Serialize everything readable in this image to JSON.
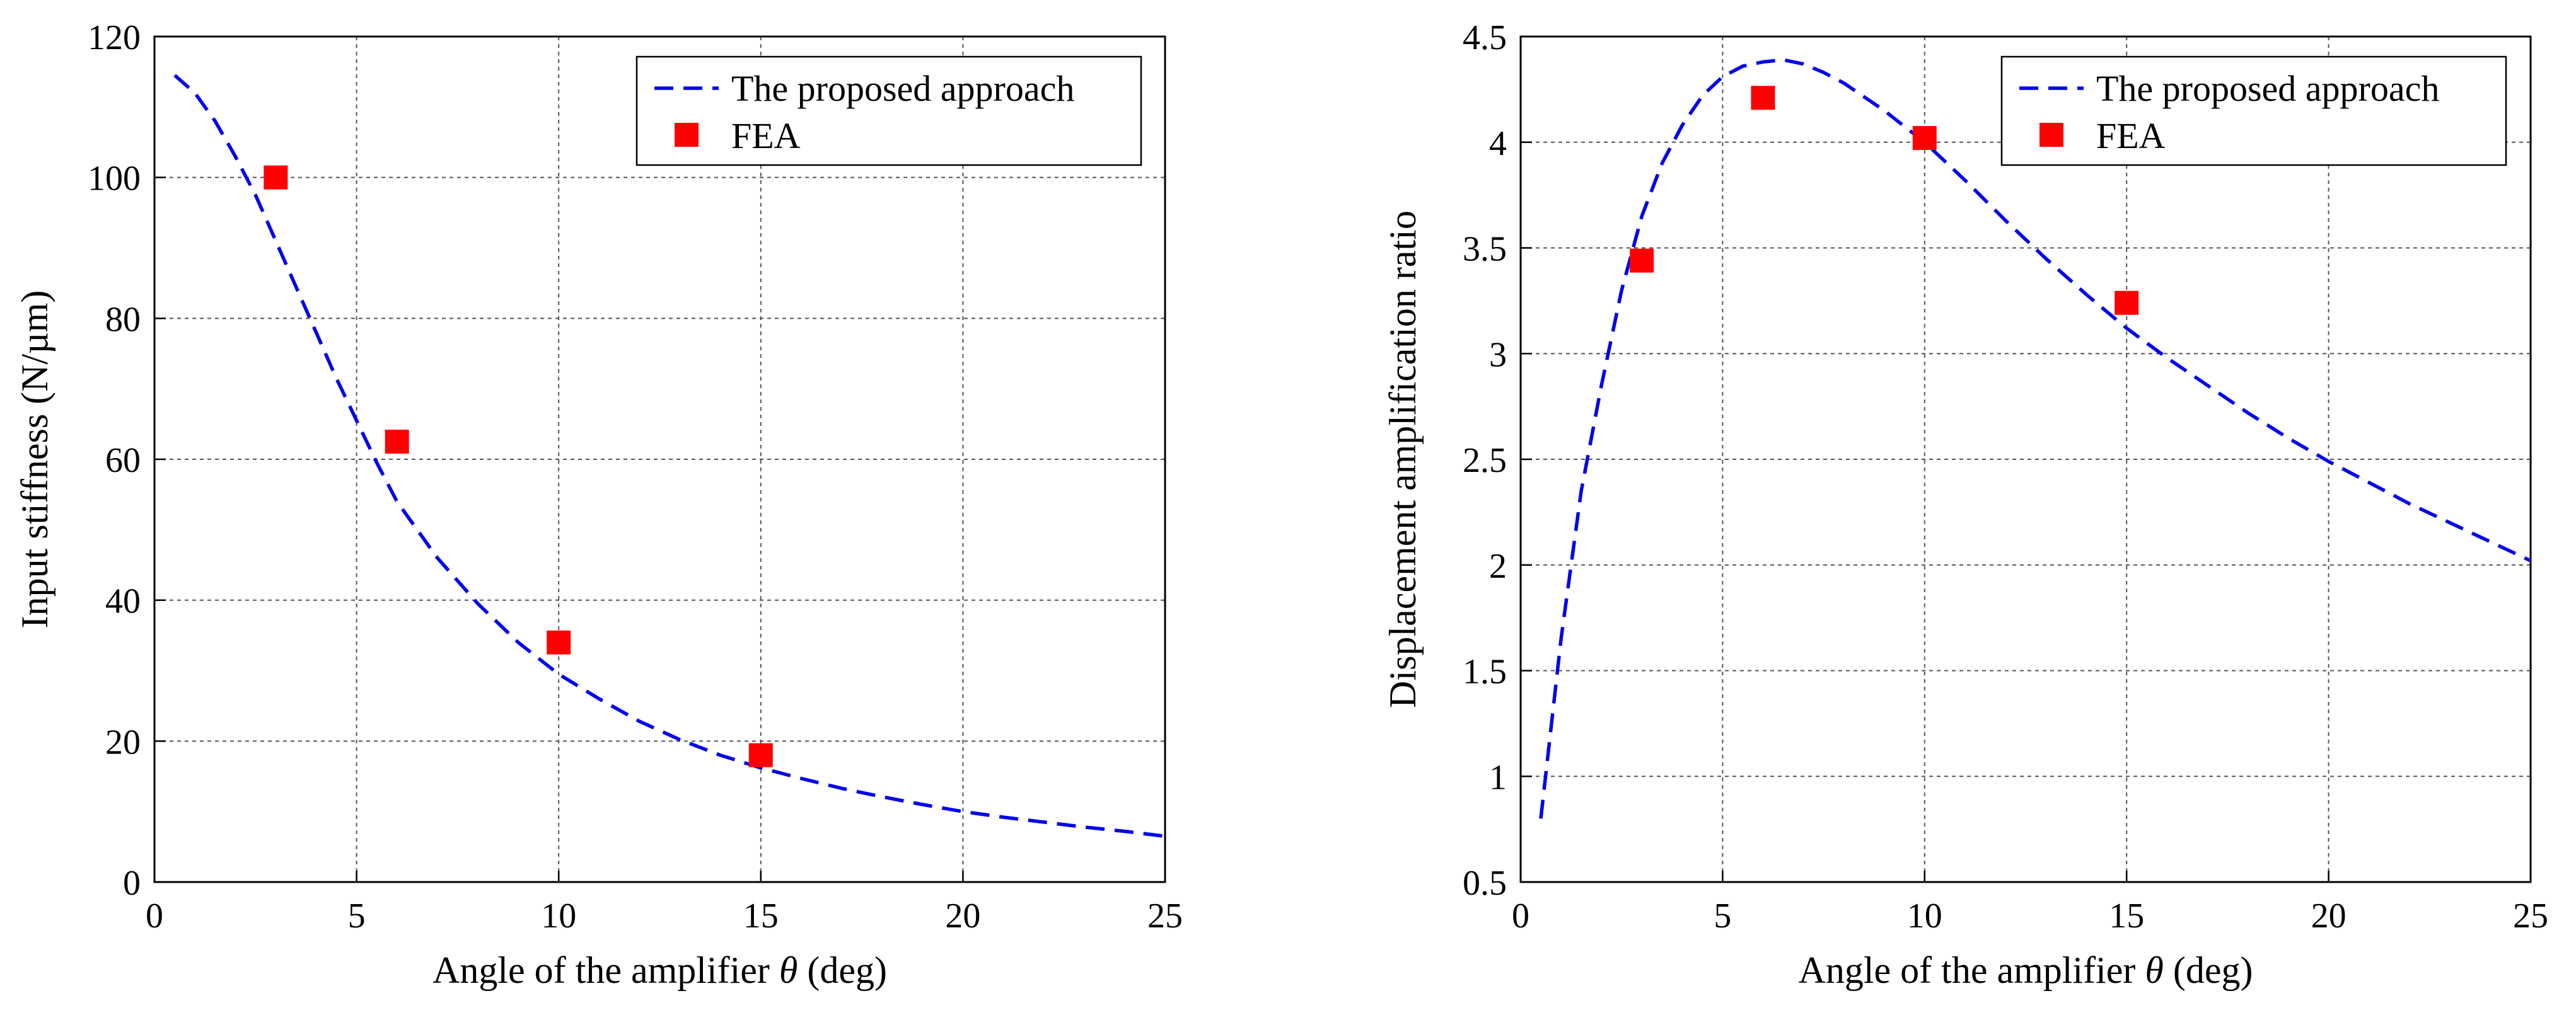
{
  "colors": {
    "curve": "#0000ee",
    "marker": "#ff0000",
    "grid": "#555555",
    "axis": "#000000"
  },
  "chart_data": [
    {
      "type": "line",
      "ylabel": "Input stiffness (N/µm)",
      "xlabel_prefix": "Angle of the amplifier ",
      "xlabel_symbol": "θ",
      "xlabel_suffix": " (deg)",
      "xlim": [
        0,
        25
      ],
      "ylim": [
        0,
        120
      ],
      "xticks": [
        "0",
        "5",
        "10",
        "15",
        "20",
        "25"
      ],
      "yticks": [
        "0",
        "20",
        "40",
        "60",
        "80",
        "100",
        "120"
      ],
      "grid": true,
      "legend_position": "top-right",
      "legend": [
        "The proposed approach",
        "FEA"
      ],
      "series": [
        {
          "name": "The proposed approach",
          "kind": "line",
          "x": [
            0.5,
            1,
            1.5,
            2,
            2.5,
            3,
            3.5,
            4,
            4.5,
            5,
            5.5,
            6,
            7,
            8,
            9,
            10,
            11,
            12,
            13,
            14,
            15,
            16,
            17,
            18,
            19,
            20,
            21,
            22,
            23,
            24,
            25
          ],
          "y": [
            114.5,
            112,
            108,
            103,
            97.5,
            91,
            84.5,
            78,
            71.5,
            65.5,
            59.5,
            54,
            46,
            39.5,
            34,
            29.5,
            26,
            22.8,
            20.2,
            18,
            16.2,
            14.7,
            13.3,
            12.1,
            11,
            10,
            9.2,
            8.5,
            7.8,
            7.2,
            6.5
          ]
        },
        {
          "name": "FEA",
          "kind": "marker",
          "x": [
            3,
            6,
            10,
            15
          ],
          "y": [
            100,
            62.5,
            34,
            18
          ]
        }
      ]
    },
    {
      "type": "line",
      "ylabel": "Displacement amplification ratio",
      "xlabel_prefix": "Angle of the amplifier ",
      "xlabel_symbol": "θ",
      "xlabel_suffix": " (deg)",
      "xlim": [
        0,
        25
      ],
      "ylim": [
        0.5,
        4.5
      ],
      "xticks": [
        "0",
        "5",
        "10",
        "15",
        "20",
        "25"
      ],
      "yticks": [
        "0.5",
        "1",
        "1.5",
        "2",
        "2.5",
        "3",
        "3.5",
        "4",
        "4.5"
      ],
      "grid": true,
      "legend_position": "top-right",
      "legend": [
        "The proposed approach",
        "FEA"
      ],
      "series": [
        {
          "name": "The proposed approach",
          "kind": "line",
          "x": [
            0.5,
            1,
            1.5,
            2,
            2.5,
            3,
            3.5,
            4,
            4.5,
            5,
            5.5,
            6,
            6.5,
            7,
            7.5,
            8,
            9,
            10,
            11,
            12,
            13,
            14,
            15,
            16,
            17,
            18,
            19,
            20,
            21,
            22,
            23,
            24,
            25
          ],
          "y": [
            0.8,
            1.65,
            2.35,
            2.85,
            3.3,
            3.65,
            3.9,
            4.08,
            4.22,
            4.31,
            4.36,
            4.38,
            4.39,
            4.37,
            4.33,
            4.28,
            4.15,
            4.0,
            3.82,
            3.63,
            3.45,
            3.28,
            3.12,
            2.98,
            2.85,
            2.72,
            2.6,
            2.49,
            2.39,
            2.29,
            2.2,
            2.11,
            2.02
          ]
        },
        {
          "name": "FEA",
          "kind": "marker",
          "x": [
            3,
            6,
            10,
            15
          ],
          "y": [
            3.44,
            4.21,
            4.02,
            3.24
          ]
        }
      ]
    }
  ]
}
